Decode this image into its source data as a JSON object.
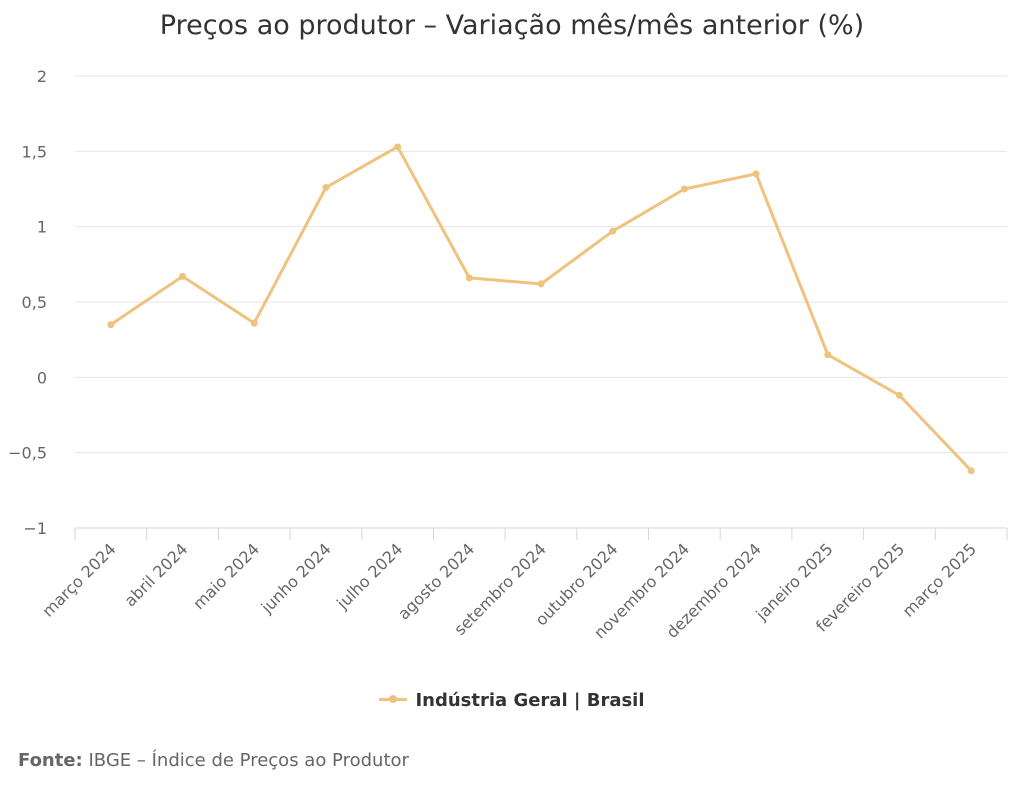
{
  "chart_data": {
    "type": "line",
    "title": "Preços ao produtor – Variação mês/mês anterior (%)",
    "categories": [
      "março 2024",
      "abril 2024",
      "maio 2024",
      "junho 2024",
      "julho 2024",
      "agosto 2024",
      "setembro 2024",
      "outubro 2024",
      "novembro 2024",
      "dezembro 2024",
      "janeiro 2025",
      "fevereiro 2025",
      "março 2025"
    ],
    "series": [
      {
        "name": "Indústria Geral | Brasil",
        "color": "#f0c27f",
        "values": [
          0.35,
          0.67,
          0.36,
          1.26,
          1.53,
          0.66,
          0.62,
          0.97,
          1.25,
          1.35,
          0.15,
          -0.12,
          -0.62
        ]
      }
    ],
    "ylim": [
      -1,
      2
    ],
    "yticks": [
      2,
      1.5,
      1,
      0.5,
      0,
      -0.5,
      -1
    ],
    "ytick_labels": [
      "2",
      "1,5",
      "1",
      "0,5",
      "0",
      "−0,5",
      "−1"
    ],
    "grid": true,
    "legend_position": "bottom-center",
    "xlabel": "",
    "ylabel": ""
  },
  "source": {
    "label": "Fonte:",
    "text": "IBGE – Índice de Preços ao Produtor"
  }
}
